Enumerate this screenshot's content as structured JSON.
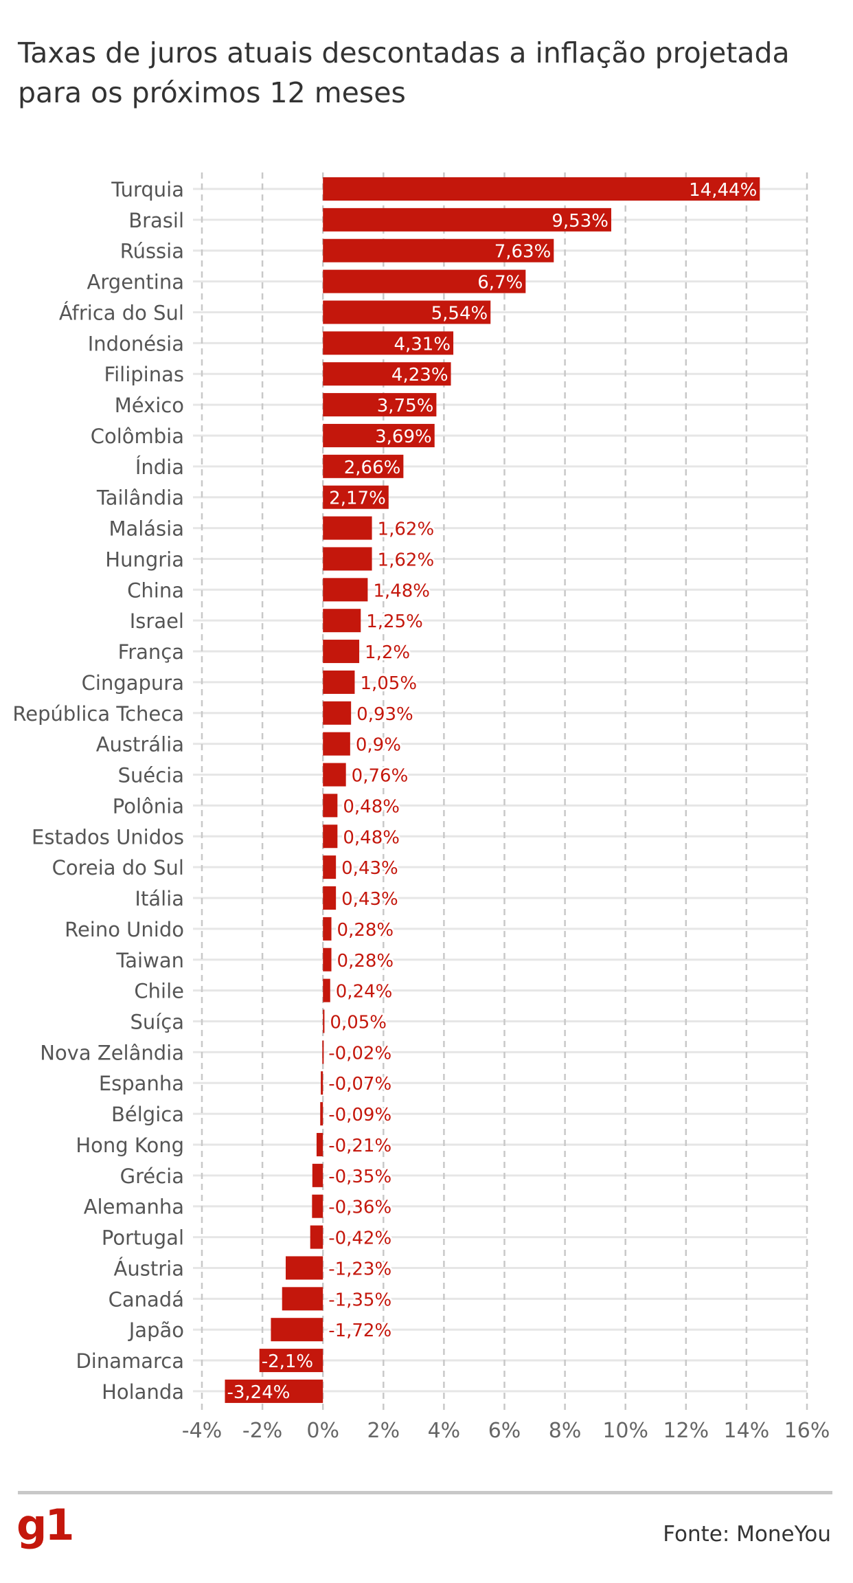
{
  "chart_data": {
    "type": "bar",
    "orientation": "horizontal",
    "title": "",
    "subtitle": "Taxas de juros atuais descontadas a inflação projetada para os próximos 12 meses",
    "xlabel": "",
    "ylabel": "",
    "xlim": [
      -4,
      16
    ],
    "ticks": [
      -4,
      -2,
      0,
      2,
      4,
      6,
      8,
      10,
      12,
      14,
      16
    ],
    "tick_labels": [
      "-4%",
      "-2%",
      "0%",
      "2%",
      "4%",
      "6%",
      "8%",
      "10%",
      "12%",
      "14%",
      "16%"
    ],
    "grid": true,
    "bar_color": "#c4170c",
    "categories": [
      "Turquia",
      "Brasil",
      "Rússia",
      "Argentina",
      "África do Sul",
      "Indonésia",
      "Filipinas",
      "México",
      "Colômbia",
      "Índia",
      "Tailândia",
      "Malásia",
      "Hungria",
      "China",
      "Israel",
      "França",
      "Cingapura",
      "República Tcheca",
      "Austrália",
      "Suécia",
      "Polônia",
      "Estados Unidos",
      "Coreia do Sul",
      "Itália",
      "Reino Unido",
      "Taiwan",
      "Chile",
      "Suíça",
      "Nova Zelândia",
      "Espanha",
      "Bélgica",
      "Hong Kong",
      "Grécia",
      "Alemanha",
      "Portugal",
      "Áustria",
      "Canadá",
      "Japão",
      "Dinamarca",
      "Holanda"
    ],
    "values": [
      14.44,
      9.53,
      7.63,
      6.7,
      5.54,
      4.31,
      4.23,
      3.75,
      3.69,
      2.66,
      2.17,
      1.62,
      1.62,
      1.48,
      1.25,
      1.2,
      1.05,
      0.93,
      0.9,
      0.76,
      0.48,
      0.48,
      0.43,
      0.43,
      0.28,
      0.28,
      0.24,
      0.05,
      -0.02,
      -0.07,
      -0.09,
      -0.21,
      -0.35,
      -0.36,
      -0.42,
      -1.23,
      -1.35,
      -1.72,
      -2.1,
      -3.24
    ],
    "value_labels": [
      "14,44%",
      "9,53%",
      "7,63%",
      "6,7%",
      "5,54%",
      "4,31%",
      "4,23%",
      "3,75%",
      "3,69%",
      "2,66%",
      "2,17%",
      "1,62%",
      "1,62%",
      "1,48%",
      "1,25%",
      "1,2%",
      "1,05%",
      "0,93%",
      "0,9%",
      "0,76%",
      "0,48%",
      "0,48%",
      "0,43%",
      "0,43%",
      "0,28%",
      "0,28%",
      "0,24%",
      "0,05%",
      "-0,02%",
      "-0,07%",
      "-0,09%",
      "-0,21%",
      "-0,35%",
      "-0,36%",
      "-0,42%",
      "-1,23%",
      "-1,35%",
      "-1,72%",
      "-2,1%",
      "-3,24%"
    ]
  },
  "footer": {
    "logo_text": "g1",
    "source": "Fonte: MoneYou"
  }
}
